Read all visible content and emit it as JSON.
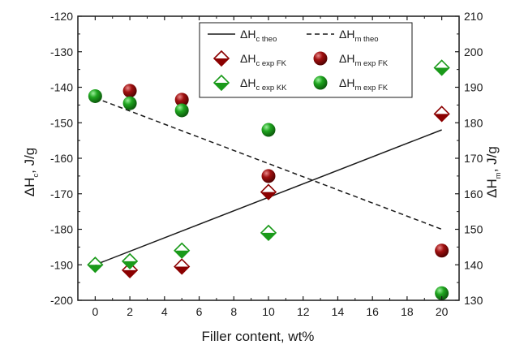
{
  "chart_data": {
    "type": "scatter",
    "xlabel": "Filler content, wt%",
    "ylabel_left": {
      "symbol": "ΔH",
      "sub": "c",
      "unit": ", J/g"
    },
    "ylabel_right": {
      "symbol": "ΔH",
      "sub": "m",
      "unit": ", J/g"
    },
    "xlim": [
      -1,
      21
    ],
    "ylim_left": [
      -200,
      -120
    ],
    "ylim_right": [
      130,
      210
    ],
    "x_ticks": [
      0,
      2,
      4,
      6,
      8,
      10,
      12,
      14,
      16,
      18,
      20
    ],
    "y_ticks_left": [
      -200,
      -190,
      -180,
      -170,
      -160,
      -150,
      -140,
      -130,
      -120
    ],
    "y_ticks_right": [
      130,
      140,
      150,
      160,
      170,
      180,
      190,
      200,
      210
    ],
    "grid": false,
    "legend_position": "top-center",
    "colors": {
      "fk": "#8b0000",
      "kk": "#1a9a1a",
      "line": "#1a1a1a"
    },
    "series": [
      {
        "name": {
          "base": "ΔH",
          "sub": "c theo"
        },
        "axis": "left",
        "style": "solid-line",
        "x": [
          0,
          20
        ],
        "y": [
          -190,
          -152
        ]
      },
      {
        "name": {
          "base": "ΔH",
          "sub": "m theo"
        },
        "axis": "right",
        "style": "dashed-line",
        "x": [
          0,
          20
        ],
        "y": [
          187,
          150
        ]
      },
      {
        "name": {
          "base": "ΔH",
          "sub": "c exp FK"
        },
        "axis": "left",
        "style": "diamond",
        "color": "fk",
        "x": [
          2,
          5,
          10,
          20
        ],
        "y": [
          -191.5,
          -190.5,
          -169.5,
          -147.5
        ]
      },
      {
        "name": {
          "base": "ΔH",
          "sub": "m exp FK"
        },
        "axis": "right",
        "style": "sphere",
        "color": "fk",
        "x": [
          2,
          5,
          10,
          20
        ],
        "y": [
          189,
          186.5,
          165,
          144
        ]
      },
      {
        "name": {
          "base": "ΔH",
          "sub": "c exp KK"
        },
        "axis": "left",
        "style": "diamond",
        "color": "kk",
        "x": [
          0,
          2,
          5,
          10,
          20
        ],
        "y": [
          -190,
          -189,
          -186,
          -181,
          -134.5
        ]
      },
      {
        "name": {
          "base": "ΔH",
          "sub": "m exp FK"
        },
        "axis": "right",
        "style": "sphere",
        "color": "kk",
        "x": [
          0,
          2,
          5,
          10,
          20
        ],
        "y": [
          187.5,
          185.5,
          183.5,
          178,
          132
        ]
      }
    ]
  }
}
